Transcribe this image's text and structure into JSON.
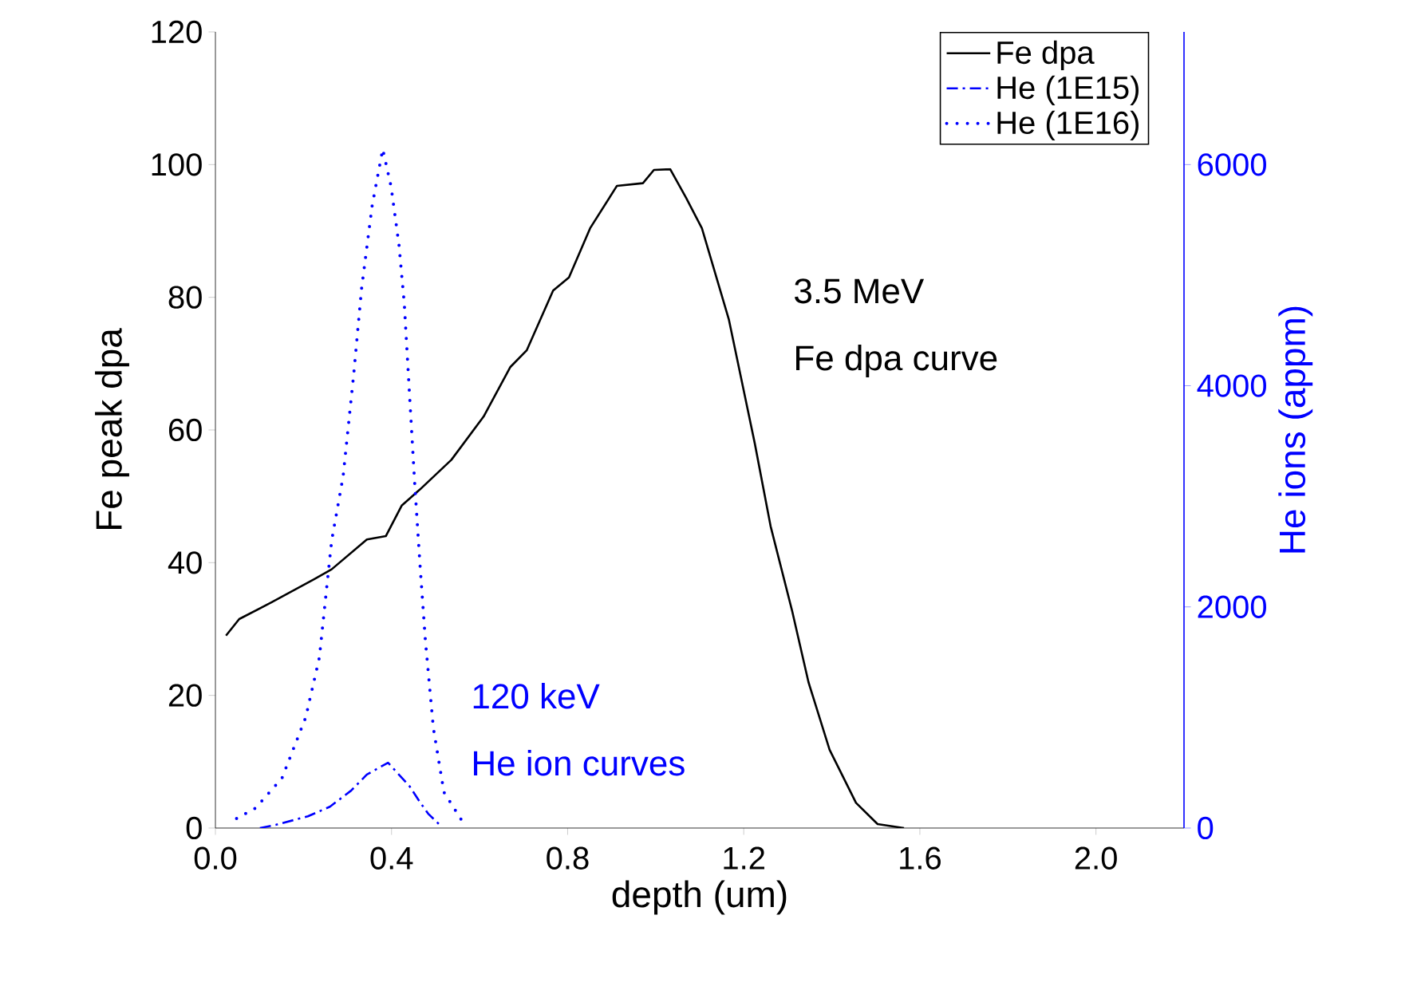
{
  "chart_data": {
    "type": "line",
    "xlabel": "depth (um)",
    "ylabel": "Fe peak dpa",
    "y2label": "He ions (appm)",
    "xlim": [
      0,
      2.2
    ],
    "ylim": [
      0,
      120
    ],
    "y2lim": [
      0,
      7200
    ],
    "xticks": [
      {
        "value": 0,
        "label": "0.0"
      },
      {
        "value": 0.4,
        "label": "0.4"
      },
      {
        "value": 0.8,
        "label": "0.8"
      },
      {
        "value": 1.2,
        "label": "1.2"
      },
      {
        "value": 1.6,
        "label": "1.6"
      },
      {
        "value": 2.0,
        "label": "2.0"
      }
    ],
    "yticks": [
      0,
      20,
      40,
      60,
      80,
      100,
      120
    ],
    "y2ticks": [
      0,
      2000,
      4000,
      6000
    ],
    "legend": "top right",
    "grid": false,
    "series": [
      {
        "name": "Fe dpa",
        "color": "#000000",
        "line_style": "solid",
        "x": [
          0.024,
          0.054,
          0.127,
          0.224,
          0.264,
          0.344,
          0.387,
          0.423,
          0.464,
          0.536,
          0.609,
          0.67,
          0.707,
          0.767,
          0.803,
          0.851,
          0.912,
          0.971,
          0.996,
          1.033,
          1.069,
          1.105,
          1.166,
          1.225,
          1.261,
          1.31,
          1.347,
          1.395,
          1.455,
          1.504,
          1.564
        ],
        "values": [
          29,
          31.5,
          34,
          37.5,
          39,
          43.5,
          44,
          48.6,
          51,
          55.5,
          62,
          69.5,
          72,
          81,
          83,
          90.4,
          96.8,
          97.2,
          99.2,
          99.3,
          95,
          90.4,
          76.7,
          58,
          45.5,
          32.7,
          22,
          11.8,
          3.8,
          0.6,
          0
        ]
      },
      {
        "name": "He (1E15)",
        "color": "#0000ff",
        "line_style": "dashdot",
        "axis": "y2",
        "x": [
          0.101,
          0.138,
          0.21,
          0.26,
          0.308,
          0.344,
          0.392,
          0.441,
          0.465,
          0.483,
          0.513
        ],
        "values": [
          0,
          30,
          106,
          193,
          338,
          484,
          591,
          378,
          232,
          131,
          15
        ]
      },
      {
        "name": "He (1E16)",
        "color": "#0000ff",
        "line_style": "dotted",
        "axis": "y2",
        "x": [
          0.048,
          0.091,
          0.151,
          0.205,
          0.236,
          0.264,
          0.29,
          0.314,
          0.332,
          0.356,
          0.38,
          0.399,
          0.417,
          0.429,
          0.441,
          0.453,
          0.465,
          0.477,
          0.495,
          0.519,
          0.568
        ],
        "values": [
          87,
          180,
          450,
          1000,
          1540,
          2600,
          3180,
          4100,
          4880,
          5630,
          6140,
          5800,
          5270,
          4740,
          3910,
          3090,
          2360,
          1690,
          905,
          324,
          15
        ]
      }
    ],
    "annotations": [
      "3.5 MeV",
      "Fe dpa curve",
      "120 keV",
      "He ion curves"
    ]
  }
}
